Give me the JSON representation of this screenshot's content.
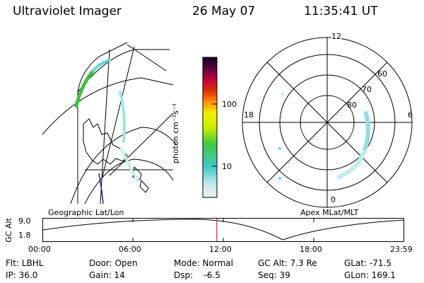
{
  "header": {
    "instrument": "Ultraviolet Imager",
    "date": "26 May 07",
    "time": "11:35:41 UT"
  },
  "panels": {
    "left_label": "Geographic Lat/Lon",
    "right_label": "Apex MLat/MLT"
  },
  "colorbar": {
    "unit": "photon cm⁻²s⁻¹",
    "ticks": [
      "100",
      "10"
    ]
  },
  "polar_plot": {
    "mlt_labels": [
      "12",
      "18",
      "6",
      "0"
    ],
    "mlat_labels": [
      "60",
      "70",
      "80"
    ]
  },
  "altitude_plot": {
    "ylabel": "GC Alt",
    "yticks": [
      "9.0",
      "1.8"
    ],
    "xticks": [
      "00:00",
      "06:00",
      "12:00",
      "18:00",
      "23:59"
    ],
    "current_time_fraction": 0.482
  },
  "status": {
    "filter": "Flt: LBHL",
    "door": "Door: Open",
    "mode": "Mode: Normal",
    "gc_alt": "GC Alt: 7.3 Re",
    "glat": "GLat: -71.5",
    "ip": "IP: 36.0",
    "gain": "Gain: 14",
    "dsp": "Dsp:    -6.5",
    "seq": "Seq: 39",
    "glon": "GLon: 169.1"
  },
  "colors": {
    "aurora_green": "#3cc23c",
    "aurora_cyan": "#5ed8d8",
    "coast_blue": "#1b1bb0",
    "marker_red": "#e02020"
  }
}
